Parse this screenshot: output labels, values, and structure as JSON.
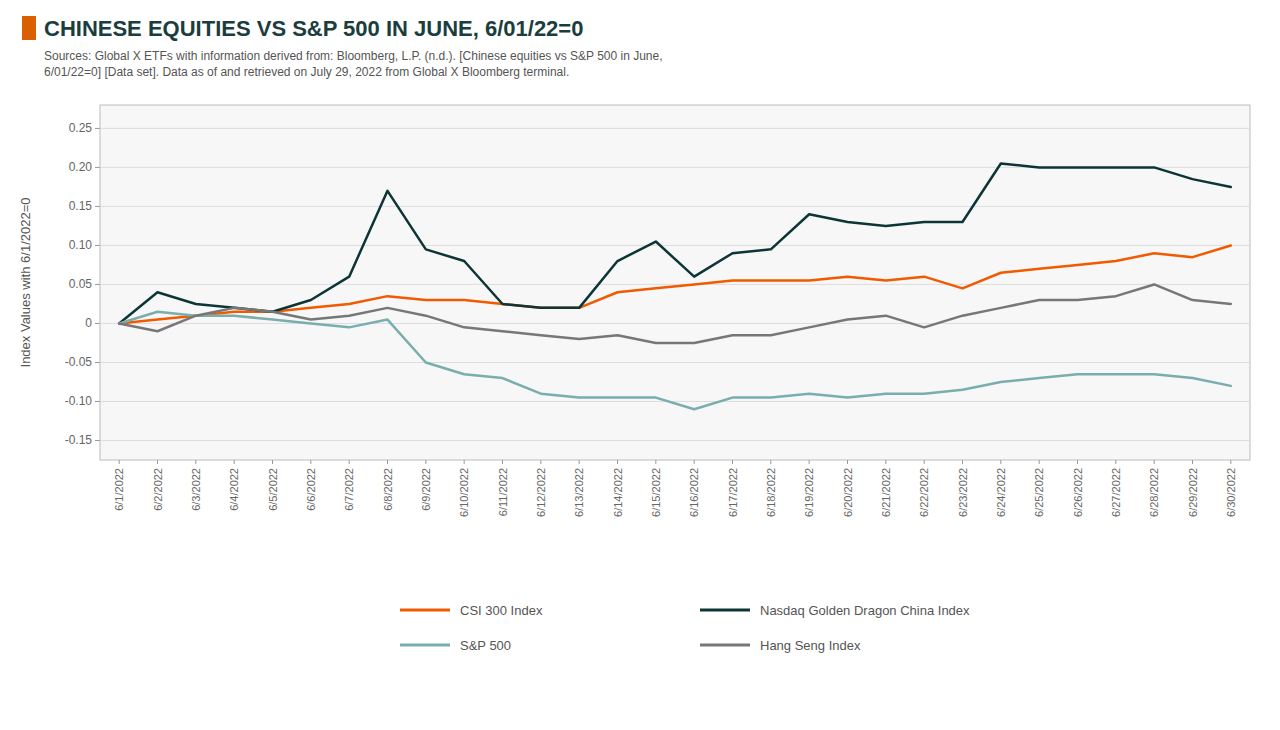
{
  "chart_data": {
    "type": "line",
    "title": "CHINESE EQUITIES VS S&P 500 IN JUNE, 6/01/22=0",
    "subtitle": [
      "Sources: Global X ETFs with information derived from: Bloomberg, L.P. (n.d.). [Chinese equities vs S&P 500 in June,",
      "6/01/22=0] [Data set]. Data as of and retrieved on July 29, 2022 from Global X Bloomberg terminal."
    ],
    "y_label": "Index Values with 6/1/2022=0",
    "categories": [
      "6/1/2022",
      "6/2/2022",
      "6/3/2022",
      "6/4/2022",
      "6/5/2022",
      "6/6/2022",
      "6/7/2022",
      "6/8/2022",
      "6/9/2022",
      "6/10/2022",
      "6/11/2022",
      "6/12/2022",
      "6/13/2022",
      "6/14/2022",
      "6/15/2022",
      "6/16/2022",
      "6/17/2022",
      "6/18/2022",
      "6/19/2022",
      "6/20/2022",
      "6/21/2022",
      "6/22/2022",
      "6/23/2022",
      "6/24/2022",
      "6/25/2022",
      "6/26/2022",
      "6/27/2022",
      "6/28/2022",
      "6/29/2022",
      "6/30/2022"
    ],
    "series": [
      {
        "name": "CSI 300 Index",
        "color": "#f05a00",
        "values": [
          0.0,
          0.005,
          0.01,
          0.015,
          0.015,
          0.02,
          0.025,
          0.035,
          0.03,
          0.03,
          0.025,
          0.02,
          0.02,
          0.04,
          0.045,
          0.05,
          0.055,
          0.055,
          0.055,
          0.06,
          0.055,
          0.06,
          0.045,
          0.065,
          0.07,
          0.075,
          0.08,
          0.09,
          0.085,
          0.1
        ]
      },
      {
        "name": "Nasdaq Golden Dragon China Index",
        "color": "#0d3535",
        "values": [
          0.0,
          0.04,
          0.025,
          0.02,
          0.015,
          0.03,
          0.06,
          0.17,
          0.095,
          0.08,
          0.025,
          0.02,
          0.02,
          0.08,
          0.105,
          0.06,
          0.09,
          0.095,
          0.14,
          0.13,
          0.125,
          0.13,
          0.13,
          0.205,
          0.2,
          0.2,
          0.2,
          0.2,
          0.185,
          0.175
        ]
      },
      {
        "name": "S&P 500",
        "color": "#7aadad",
        "values": [
          0.0,
          0.015,
          0.01,
          0.01,
          0.005,
          0.0,
          -0.005,
          0.005,
          -0.05,
          -0.065,
          -0.07,
          -0.09,
          -0.095,
          -0.095,
          -0.095,
          -0.11,
          -0.095,
          -0.095,
          -0.09,
          -0.095,
          -0.09,
          -0.09,
          -0.085,
          -0.075,
          -0.07,
          -0.065,
          -0.065,
          -0.065,
          -0.07,
          -0.08
        ]
      },
      {
        "name": "Hang Seng Index",
        "color": "#777777",
        "values": [
          0.0,
          -0.01,
          0.01,
          0.02,
          0.015,
          0.005,
          0.01,
          0.02,
          0.01,
          -0.005,
          -0.01,
          -0.015,
          -0.02,
          -0.015,
          -0.025,
          -0.025,
          -0.015,
          -0.015,
          -0.005,
          0.005,
          0.01,
          -0.005,
          0.01,
          0.02,
          0.03,
          0.03,
          0.035,
          0.05,
          0.03,
          0.025
        ]
      }
    ],
    "ylim": [
      -0.175,
      0.28
    ],
    "yticks": [
      -0.15,
      {
        "value": -0.1,
        "label": "-0.10"
      },
      -0.05,
      0,
      0.05,
      {
        "value": 0.1,
        "label": "0.10"
      },
      0.15,
      {
        "value": 0.2,
        "label": "0.20"
      },
      0.25
    ],
    "grid": true,
    "legend": "bottom"
  }
}
